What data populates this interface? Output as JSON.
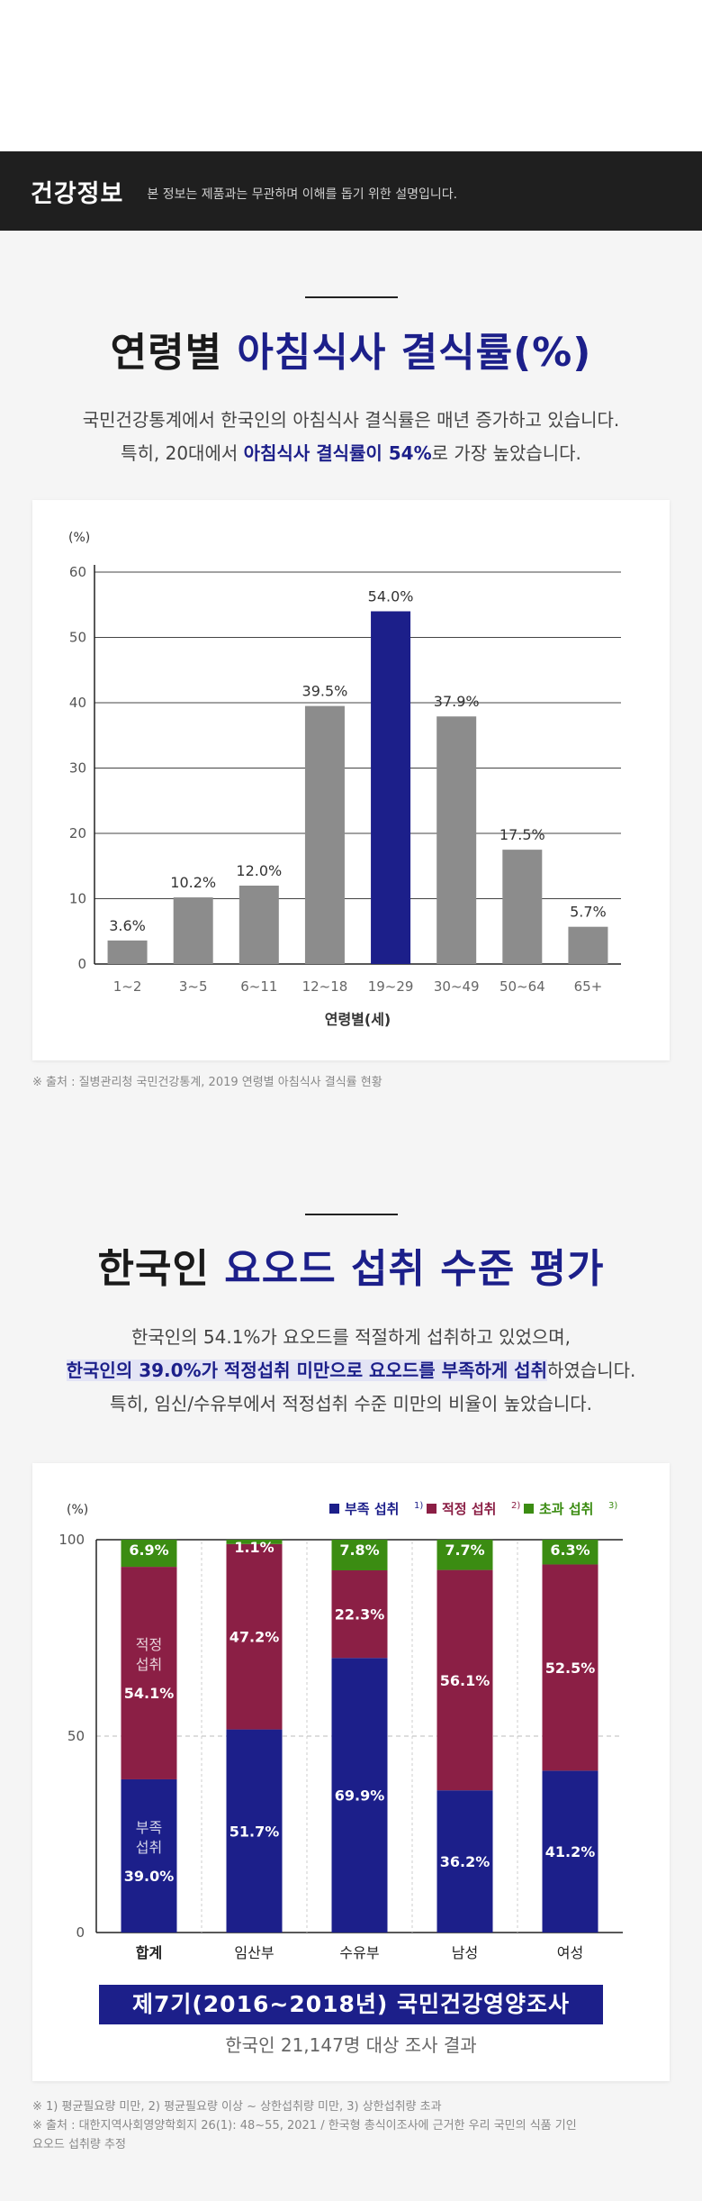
{
  "header": {
    "title": "건강정보",
    "subtitle": "본 정보는 제품과는 무관하며 이해를 돕기 위한 설명입니다."
  },
  "section1": {
    "title_plain": "연령별 ",
    "title_accent": "아침식사 결식률(%)",
    "desc_line1": "국민건강통계에서 한국인의 아침식사 결식률은 매년 증가하고 있습니다.",
    "desc_line2_pre": "특히, 20대에서 ",
    "desc_line2_hl": "아침식사 결식률이 54%",
    "desc_line2_post": "로 가장 높았습니다.",
    "source": "※ 출처 : 질병관리청 국민건강통계, 2019 연령별 아침식사 결식률 현황"
  },
  "section2": {
    "title_plain": "한국인 ",
    "title_accent": "요오드 섭취 수준 평가",
    "desc_line1": "한국인의 54.1%가 요오드를 적절하게 섭취하고 있었으며,",
    "desc_line2_hl": "한국인의 39.0%가 적정섭취 미만으로 요오드를 부족하게 섭취",
    "desc_line2_post": "하였습니다.",
    "desc_line3": "특히, 임신/수유부에서 적정섭취 수준 미만의 비율이 높았습니다.",
    "survey_banner": "제7기(2016~2018년) 국민건강영양조사",
    "survey_sub": "한국인 21,147명 대상 조사 결과",
    "note_line1": "※ 1) 평균필요량 미만, 2) 평균필요량 이상 ~ 상한섭취량 미만, 3) 상한섭취량 초과",
    "note_line2": "※ 출처 : 대한지역사회영양학회지 26(1): 48~55, 2021 / 한국형 총식이조사에 근거한 우리 국민의 식품 기인",
    "note_line3": "요오드 섭취량 추정"
  },
  "chart_data": [
    {
      "type": "bar",
      "title": "연령별 아침식사 결식률(%)",
      "ylabel": "(%)",
      "xlabel": "연령별(세)",
      "ylim": [
        0,
        60
      ],
      "yticks": [
        0,
        10,
        20,
        30,
        40,
        50,
        60
      ],
      "grid": true,
      "categories": [
        "1~2",
        "3~5",
        "6~11",
        "12~18",
        "19~29",
        "30~49",
        "50~64",
        "65+"
      ],
      "values": [
        3.6,
        10.2,
        12.0,
        39.5,
        54.0,
        37.9,
        17.5,
        5.7
      ],
      "value_labels": [
        "3.6%",
        "10.2%",
        "12.0%",
        "39.5%",
        "54.0%",
        "37.9%",
        "17.5%",
        "5.7%"
      ],
      "highlight_index": 4,
      "colors": {
        "default": "#8c8c8c",
        "highlight": "#1c1f8a"
      }
    },
    {
      "type": "bar",
      "stacked": true,
      "title": "한국인 요오드 섭취 수준 평가",
      "ylabel": "(%)",
      "ylim": [
        0,
        100
      ],
      "yticks": [
        0,
        50,
        100
      ],
      "legend_position": "top-right",
      "categories": [
        "합계",
        "임산부",
        "수유부",
        "남성",
        "여성"
      ],
      "series": [
        {
          "name": "부족 섭취",
          "sup": "1)",
          "color": "#1c1f8a",
          "values": [
            39.0,
            51.7,
            69.9,
            36.2,
            41.2
          ],
          "labels": [
            "39.0%",
            "51.7%",
            "69.9%",
            "36.2%",
            "41.2%"
          ]
        },
        {
          "name": "적정 섭취",
          "sup": "2)",
          "color": "#8b1f45",
          "values": [
            54.1,
            47.2,
            22.3,
            56.1,
            52.5
          ],
          "labels": [
            "54.1%",
            "47.2%",
            "22.3%",
            "56.1%",
            "52.5%"
          ]
        },
        {
          "name": "초과 섭취",
          "sup": "3)",
          "color": "#3b8c12",
          "values": [
            6.9,
            1.1,
            7.8,
            7.7,
            6.3
          ],
          "labels": [
            "6.9%",
            "1.1%",
            "7.8%",
            "7.7%",
            "6.3%"
          ]
        }
      ],
      "inline_labels": {
        "deficient": [
          "부족",
          "섭취"
        ],
        "adequate": [
          "적정",
          "섭취"
        ]
      }
    }
  ]
}
